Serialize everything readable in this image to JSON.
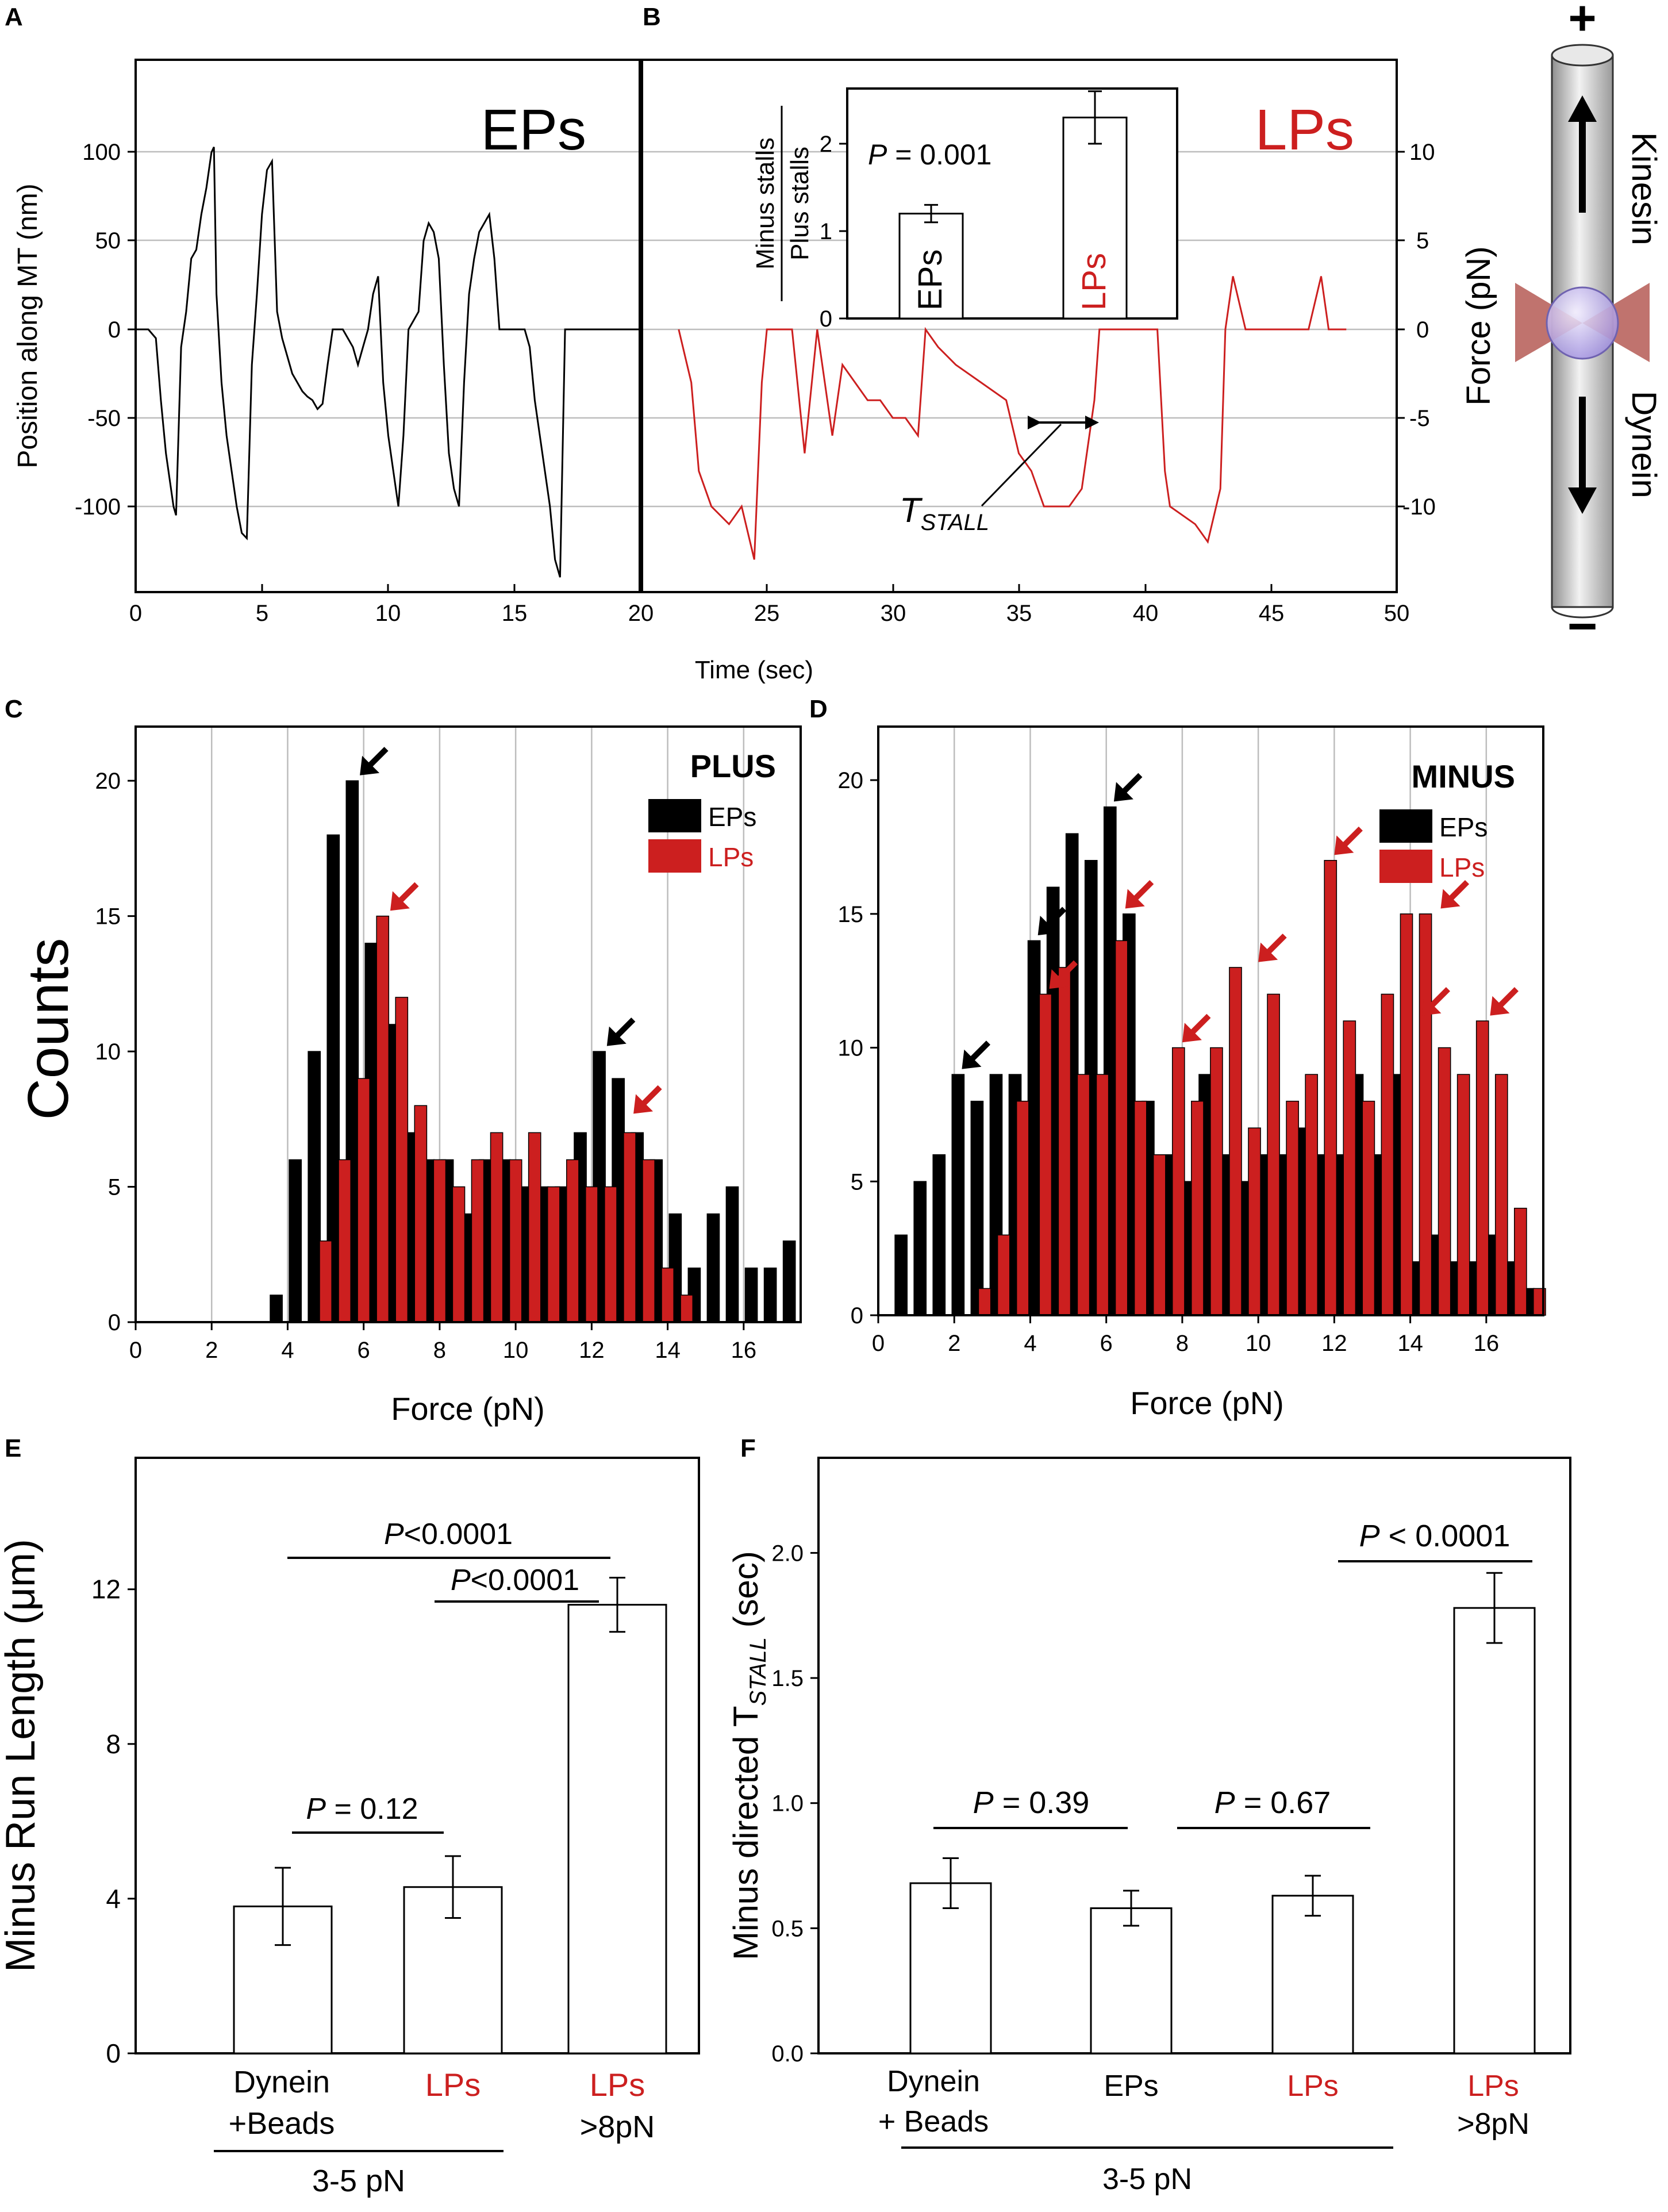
{
  "colors": {
    "black": "#000000",
    "red": "#cc1f1f",
    "grid": "#bdbdbd"
  },
  "panels": {
    "A": {
      "letter": "A",
      "label": "EPs",
      "ylabel": "Position along MT (nm)",
      "yticks": [
        "100",
        "50",
        "0",
        "-50",
        "-100"
      ],
      "xticks": [
        "0",
        "5",
        "10",
        "15",
        "20"
      ]
    },
    "B": {
      "letter": "B",
      "label": "LPs",
      "ylabel": "Force (pN)",
      "yticks": [
        "10",
        "5",
        "0",
        "-5",
        "-10"
      ],
      "xticks": [
        "25",
        "30",
        "35",
        "40",
        "45",
        "50"
      ],
      "tstall_main": "T",
      "tstall_sub": "STALL",
      "inset": {
        "ylabel_top": "Minus stalls",
        "ylabel_bottom": "Plus stalls",
        "p_label": "P",
        "p_value": " = 0.001",
        "yticks": [
          "2",
          "1",
          "0"
        ],
        "bars": [
          {
            "label": "EPs"
          },
          {
            "label": "LPs"
          }
        ]
      }
    },
    "xlabel_AB": "Time (sec)",
    "diagram": {
      "plus": "+",
      "minus": "−",
      "kinesin": "Kinesin",
      "dynein": "Dynein"
    },
    "C": {
      "letter": "C",
      "legend_title": "PLUS",
      "legend_eps": "EPs",
      "legend_lps": "LPs",
      "ylabel": "Counts",
      "xlabel": "Force (pN)",
      "yticks": [
        "20",
        "15",
        "10",
        "5",
        "0"
      ],
      "xticks": [
        "0",
        "2",
        "4",
        "6",
        "8",
        "10",
        "12",
        "14",
        "16"
      ]
    },
    "D": {
      "letter": "D",
      "legend_title": "MINUS",
      "legend_eps": "EPs",
      "legend_lps": "LPs",
      "xlabel": "Force (pN)",
      "yticks": [
        "20",
        "15",
        "10",
        "5",
        "0"
      ],
      "xticks": [
        "0",
        "2",
        "4",
        "6",
        "8",
        "10",
        "12",
        "14",
        "16"
      ]
    },
    "E": {
      "letter": "E",
      "ylabel": "Minus Run Length (μm)",
      "yticks": [
        "12",
        "8",
        "4",
        "0"
      ],
      "cat1_line1": "Dynein",
      "cat1_line2": "+Beads",
      "cat2": "LPs",
      "cat3_line1": "LPs",
      "cat3_line2": ">8pN",
      "group_label": "3-5 pN",
      "p1_label": "P",
      "p1_value": " = 0.12",
      "p2_label": "P",
      "p2_value": "<0.0001",
      "p3_label": "P",
      "p3_value": "<0.0001"
    },
    "F": {
      "letter": "F",
      "ylabel_main": "Minus directed T",
      "ylabel_sub": "STALL",
      "ylabel_end": " (sec)",
      "yticks": [
        "2.0",
        "1.5",
        "1.0",
        "0.5",
        "0.0"
      ],
      "cat1_line1": "Dynein",
      "cat1_line2": "+ Beads",
      "cat2": "EPs",
      "cat3": "LPs",
      "cat4_line1": "LPs",
      "cat4_line2": ">8pN",
      "group_label": "3-5 pN",
      "p1_label": "P",
      "p1_value": " = 0.39",
      "p2_label": "P",
      "p2_value": " = 0.67",
      "p3_label": "P",
      "p3_value": " < 0.0001"
    }
  },
  "chart_data": [
    {
      "panel": "A",
      "type": "line",
      "xlabel": "Time (sec)",
      "ylabel": "Position along MT (nm)",
      "xlim": [
        0,
        20
      ],
      "ylim": [
        -150,
        150
      ],
      "series": [
        {
          "name": "EPs",
          "color": "#000000",
          "x": [
            0,
            0.5,
            0.8,
            1.0,
            1.2,
            1.5,
            1.6,
            1.8,
            2.0,
            2.2,
            2.4,
            2.6,
            2.8,
            3.0,
            3.1,
            3.2,
            3.4,
            3.6,
            3.8,
            4.0,
            4.2,
            4.4,
            4.6,
            4.8,
            5.0,
            5.2,
            5.4,
            5.6,
            5.8,
            6.0,
            6.2,
            6.4,
            6.6,
            6.8,
            7.0,
            7.2,
            7.4,
            7.6,
            7.8,
            8.0,
            8.2,
            8.4,
            8.6,
            8.8,
            9.0,
            9.2,
            9.4,
            9.6,
            9.8,
            10.0,
            10.2,
            10.4,
            10.6,
            10.8,
            11.0,
            11.2,
            11.4,
            11.6,
            11.8,
            12.0,
            12.2,
            12.4,
            12.6,
            12.8,
            13.0,
            13.2,
            13.4,
            13.6,
            13.8,
            14.0,
            14.2,
            14.4,
            14.6,
            14.8,
            15.0,
            15.2,
            15.4,
            15.6,
            15.8,
            16.0,
            16.2,
            16.4,
            16.6,
            16.8,
            17.0,
            17.2,
            17.4,
            17.6,
            17.8,
            18.0,
            18.2,
            18.4,
            18.6,
            18.8,
            19.0,
            19.2,
            19.4,
            19.6,
            19.8,
            20.0
          ],
          "y": [
            0,
            0,
            -5,
            -40,
            -70,
            -100,
            -105,
            -10,
            10,
            40,
            45,
            65,
            80,
            100,
            103,
            20,
            -30,
            -60,
            -80,
            -100,
            -115,
            -118,
            -20,
            20,
            65,
            90,
            95,
            10,
            -5,
            -15,
            -25,
            -30,
            -35,
            -38,
            -40,
            -45,
            -42,
            -20,
            0,
            0,
            0,
            -5,
            -10,
            -20,
            -10,
            0,
            20,
            30,
            -30,
            -60,
            -80,
            -100,
            -60,
            0,
            5,
            10,
            50,
            60,
            55,
            40,
            -20,
            -70,
            -90,
            -100,
            -30,
            20,
            40,
            55,
            60,
            65,
            40,
            0,
            0,
            0,
            0,
            0,
            0,
            -10,
            -40,
            -60,
            -80,
            -100,
            -130,
            -140,
            0,
            0,
            0,
            0,
            0,
            0,
            0,
            0,
            0,
            0,
            0,
            0,
            0,
            0,
            0,
            0
          ]
        }
      ]
    },
    {
      "panel": "B",
      "type": "line",
      "xlabel": "Time (sec)",
      "ylabel": "Force (pN)",
      "xlim": [
        20,
        50
      ],
      "ylim": [
        -15,
        15
      ],
      "series": [
        {
          "name": "LPs",
          "color": "#cc1f1f",
          "x": [
            21.5,
            22.0,
            22.3,
            22.8,
            23.5,
            24.0,
            24.5,
            24.8,
            25.0,
            25.3,
            26.0,
            26.5,
            27.0,
            27.3,
            27.6,
            28.0,
            28.5,
            29.0,
            29.5,
            30.0,
            30.5,
            31.0,
            31.3,
            31.8,
            32.5,
            33.5,
            34.5,
            35.0,
            35.5,
            36.0,
            36.5,
            37.0,
            37.5,
            38.0,
            38.2,
            39.0,
            40.0,
            40.5,
            40.8,
            41.0,
            42.0,
            42.5,
            43.0,
            43.2,
            43.5,
            44.0,
            45.0,
            46.0,
            46.5,
            47.0,
            47.3,
            47.6,
            48.0
          ],
          "y": [
            0,
            -3,
            -8,
            -10,
            -11,
            -10,
            -13,
            -3,
            0,
            0,
            0,
            -7,
            0,
            -3,
            -6,
            -2,
            -3,
            -4,
            -4,
            -5,
            -5,
            -6,
            0,
            -1,
            -2,
            -3,
            -4,
            -7,
            -8,
            -10,
            -10,
            -10,
            -9,
            -4,
            0,
            0,
            0,
            0,
            -8,
            -10,
            -11,
            -12,
            -9,
            0,
            3,
            0,
            0,
            0,
            0,
            3,
            0,
            0,
            0
          ]
        }
      ]
    },
    {
      "panel": "B inset",
      "type": "bar",
      "categories": [
        "EPs",
        "LPs"
      ],
      "values": [
        1.2,
        2.3
      ],
      "errors": [
        0.1,
        0.3
      ],
      "colors": [
        "#000000",
        "#cc1f1f"
      ],
      "ylim": [
        0,
        2.6
      ]
    },
    {
      "panel": "C",
      "type": "bar",
      "xlabel": "Force (pN)",
      "ylabel": "Counts",
      "xlim": [
        0,
        17.5
      ],
      "ylim": [
        0,
        22
      ],
      "series": [
        {
          "name": "EPs",
          "color": "#000000",
          "x": [
            3.7,
            4.2,
            4.7,
            5.2,
            5.7,
            6.2,
            6.7,
            7.2,
            7.7,
            8.2,
            8.7,
            9.2,
            9.7,
            10.2,
            10.7,
            11.2,
            11.7,
            12.2,
            12.7,
            13.2,
            13.7,
            14.2,
            14.7,
            15.2,
            15.7,
            16.2,
            16.7,
            17.2
          ],
          "y": [
            1,
            6,
            10,
            18,
            20,
            14,
            11,
            7,
            6,
            6,
            4,
            6,
            6,
            5,
            5,
            5,
            7,
            10,
            9,
            7,
            6,
            4,
            2,
            4,
            5,
            2,
            2,
            3
          ]
        },
        {
          "name": "LPs",
          "color": "#cc1f1f",
          "x": [
            5.0,
            5.5,
            6.0,
            6.5,
            7.0,
            7.5,
            8.0,
            8.5,
            9.0,
            9.5,
            10.0,
            10.5,
            11.0,
            11.5,
            12.0,
            12.5,
            13.0,
            13.5,
            14.0,
            14.5
          ],
          "y": [
            3,
            6,
            9,
            15,
            12,
            8,
            6,
            5,
            6,
            7,
            6,
            7,
            5,
            6,
            5,
            5,
            7,
            6,
            2,
            1
          ]
        }
      ]
    },
    {
      "panel": "D",
      "type": "bar",
      "xlabel": "Force (pN)",
      "xlim": [
        0,
        17.5
      ],
      "ylim": [
        0,
        22
      ],
      "series": [
        {
          "name": "EPs",
          "color": "#000000",
          "x": [
            0.6,
            1.1,
            1.6,
            2.1,
            2.6,
            3.1,
            3.6,
            4.1,
            4.6,
            5.1,
            5.6,
            6.1,
            6.6,
            7.1,
            7.6,
            8.1,
            8.6,
            9.1,
            9.6,
            10.1,
            10.6,
            11.1,
            11.6,
            12.1,
            12.6,
            13.1,
            13.6,
            14.1,
            14.6,
            15.1,
            15.6,
            16.1,
            16.6,
            17.1
          ],
          "y": [
            3,
            5,
            6,
            9,
            8,
            9,
            9,
            14,
            16,
            18,
            17,
            19,
            15,
            8,
            6,
            5,
            9,
            6,
            5,
            6,
            6,
            7,
            6,
            6,
            9,
            6,
            9,
            2,
            3,
            2,
            2,
            3,
            2,
            1
          ]
        },
        {
          "name": "LPs",
          "color": "#cc1f1f",
          "x": [
            2.8,
            3.3,
            3.8,
            4.4,
            4.9,
            5.4,
            5.9,
            6.4,
            6.9,
            7.4,
            7.9,
            8.4,
            8.9,
            9.4,
            9.9,
            10.4,
            10.9,
            11.4,
            11.9,
            12.4,
            12.9,
            13.4,
            13.9,
            14.4,
            14.9,
            15.4,
            15.9,
            16.4,
            16.9,
            17.4
          ],
          "y": [
            1,
            3,
            8,
            12,
            13,
            9,
            9,
            14,
            8,
            6,
            10,
            8,
            10,
            13,
            7,
            12,
            8,
            9,
            17,
            11,
            8,
            12,
            15,
            15,
            10,
            9,
            11,
            9,
            4,
            1
          ]
        }
      ]
    },
    {
      "panel": "E",
      "type": "bar",
      "ylabel": "Minus Run Length (μm)",
      "ylim": [
        0,
        16
      ],
      "categories": [
        "Dynein +Beads",
        "LPs",
        "LPs >8pN"
      ],
      "values": [
        3.8,
        4.3,
        11.6
      ],
      "errors": [
        1.0,
        0.8,
        0.7
      ],
      "pvalues": [
        "P = 0.12",
        "P<0.0001",
        "P<0.0001"
      ]
    },
    {
      "panel": "F",
      "type": "bar",
      "ylabel": "Minus directed T STALL (sec)",
      "ylim": [
        0,
        2.4
      ],
      "categories": [
        "Dynein + Beads",
        "EPs",
        "LPs",
        "LPs >8pN"
      ],
      "values": [
        0.68,
        0.58,
        0.63,
        1.78
      ],
      "errors": [
        0.1,
        0.07,
        0.08,
        0.14
      ],
      "pvalues": [
        "P = 0.39",
        "P = 0.67",
        "P < 0.0001"
      ]
    }
  ]
}
